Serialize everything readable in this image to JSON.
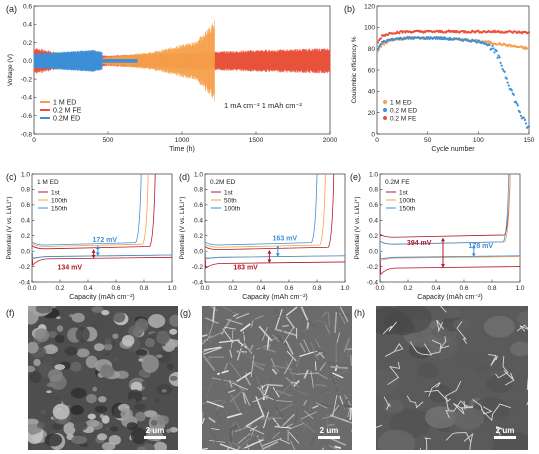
{
  "colors": {
    "orange": "#f5a04a",
    "red": "#e8513a",
    "blue": "#3f8fd6",
    "darkred": "#b2182b",
    "sem_dark": "#3a3a3a",
    "sem_light": "#cfcfcf"
  },
  "chart_data": [
    {
      "id": "a",
      "panel_label": "(a)",
      "type": "line",
      "xlabel": "Time (h)",
      "ylabel": "Voltage (V)",
      "xlim": [
        0,
        2000
      ],
      "ylim": [
        -0.8,
        0.6
      ],
      "xticks": [
        "0",
        "500",
        "1000",
        "1500",
        "2000"
      ],
      "yticks": [
        "-0.8",
        "-0.6",
        "-0.4",
        "-0.2",
        "0.0",
        "0.2",
        "0.4",
        "0.6"
      ],
      "annotation": "1 mA cm⁻²   1 mAh cm⁻²",
      "legend_position": "bottom-left",
      "series": [
        {
          "name": "1 M  ED",
          "color": "#f5a04a",
          "t_end": 1220,
          "amp": [
            [
              0,
              0.05
            ],
            [
              400,
              0.03
            ],
            [
              800,
              0.1
            ],
            [
              1100,
              0.22
            ],
            [
              1220,
              0.45
            ]
          ]
        },
        {
          "name": "0.2 M FE",
          "color": "#e8513a",
          "t_end": 2000,
          "amp": [
            [
              0,
              0.15
            ],
            [
              200,
              0.08
            ],
            [
              500,
              0.06
            ],
            [
              1000,
              0.09
            ],
            [
              1500,
              0.12
            ],
            [
              2000,
              0.14
            ]
          ]
        },
        {
          "name": "0.2M ED",
          "color": "#3f8fd6",
          "t_end": 460,
          "amp": [
            [
              0,
              0.08
            ],
            [
              200,
              0.1
            ],
            [
              400,
              0.12
            ],
            [
              460,
              0.1
            ]
          ],
          "tail_end": 700,
          "tail_amp": 0.02
        }
      ]
    },
    {
      "id": "b",
      "panel_label": "(b)",
      "type": "scatter",
      "xlabel": "Cycle number",
      "ylabel": "Coulombic efficiency %",
      "xlim": [
        0,
        150
      ],
      "ylim": [
        0,
        120
      ],
      "xticks": [
        "0",
        "50",
        "100",
        "150"
      ],
      "yticks": [
        "0",
        "20",
        "40",
        "60",
        "80",
        "100",
        "120"
      ],
      "legend_position": "bottom-left",
      "series": [
        {
          "name": "1  M  ED",
          "color": "#f5a04a",
          "points": [
            [
              1,
              78
            ],
            [
              5,
              84
            ],
            [
              15,
              88
            ],
            [
              30,
              90
            ],
            [
              60,
              90
            ],
            [
              90,
              88
            ],
            [
              110,
              86
            ],
            [
              130,
              83
            ],
            [
              150,
              80
            ]
          ]
        },
        {
          "name": "0.2 M  ED",
          "color": "#3f8fd6",
          "points": [
            [
              1,
              80
            ],
            [
              5,
              86
            ],
            [
              15,
              89
            ],
            [
              30,
              90
            ],
            [
              60,
              90
            ],
            [
              90,
              88
            ],
            [
              105,
              86
            ],
            [
              112,
              82
            ],
            [
              118,
              75
            ],
            [
              123,
              65
            ],
            [
              127,
              55
            ],
            [
              131,
              45
            ],
            [
              135,
              35
            ],
            [
              139,
              25
            ],
            [
              143,
              16
            ],
            [
              147,
              9
            ],
            [
              150,
              5
            ]
          ]
        },
        {
          "name": "0.2 M  FE",
          "color": "#e8513a",
          "points": [
            [
              1,
              86
            ],
            [
              5,
              92
            ],
            [
              15,
              95
            ],
            [
              30,
              96
            ],
            [
              60,
              96
            ],
            [
              90,
              96
            ],
            [
              120,
              96
            ],
            [
              150,
              95
            ]
          ]
        }
      ]
    },
    {
      "id": "c",
      "panel_label": "(c)",
      "type": "line",
      "title": "1 M ED",
      "xlabel": "Capacity (mAh cm⁻²)",
      "ylabel": "Potential (V vs. Li/Li⁺)",
      "xlim": [
        0,
        1.0
      ],
      "ylim": [
        -0.4,
        1.0
      ],
      "xticks": [
        "0.0",
        "0.2",
        "0.4",
        "0.6",
        "0.8",
        "1.0"
      ],
      "yticks": [
        "-0.4",
        "-0.2",
        "0.0",
        "0.2",
        "0.4",
        "0.6",
        "0.8",
        "1.0"
      ],
      "legend": [
        "1st",
        "100th",
        "150th"
      ],
      "series": [
        {
          "name": "1st",
          "color": "#b2182b",
          "charge_end": 0.88,
          "plateau_c": 0.03,
          "plateau_d": -0.1,
          "nuc": -0.18
        },
        {
          "name": "100th",
          "color": "#f5a04a",
          "charge_end": 0.83,
          "plateau_c": 0.06,
          "plateau_d": -0.07,
          "nuc": -0.1
        },
        {
          "name": "150th",
          "color": "#3f8fd6",
          "charge_end": 0.78,
          "plateau_c": 0.08,
          "plateau_d": -0.07,
          "nuc": -0.09
        }
      ],
      "annotations": [
        {
          "text": "172 mV",
          "color": "#3f8fd6",
          "x": 0.52,
          "y": 0.12
        },
        {
          "text": "134 mV",
          "color": "#b2182b",
          "x": 0.27,
          "y": -0.24
        }
      ]
    },
    {
      "id": "d",
      "panel_label": "(d)",
      "type": "line",
      "title": "0.2M ED",
      "xlabel": "Capacity (mAh cm⁻²)",
      "ylabel": "Potential (V vs. Li/Li⁺)",
      "xlim": [
        0,
        1.0
      ],
      "ylim": [
        -0.4,
        1.0
      ],
      "xticks": [
        "0.0",
        "0.2",
        "0.4",
        "0.6",
        "0.8",
        "1.0"
      ],
      "yticks": [
        "-0.4",
        "-0.2",
        "0.0",
        "0.2",
        "0.4",
        "0.6",
        "0.8",
        "1.0"
      ],
      "legend": [
        "1st",
        "50th",
        "100th"
      ],
      "series": [
        {
          "name": "1st",
          "color": "#b2182b",
          "charge_end": 0.92,
          "plateau_c": 0.02,
          "plateau_d": -0.16,
          "nuc": -0.22
        },
        {
          "name": "50th",
          "color": "#f5a04a",
          "charge_end": 0.86,
          "plateau_c": 0.05,
          "plateau_d": -0.08,
          "nuc": -0.1
        },
        {
          "name": "100th",
          "color": "#3f8fd6",
          "charge_end": 0.8,
          "plateau_c": 0.08,
          "plateau_d": -0.08,
          "nuc": -0.09
        }
      ],
      "annotations": [
        {
          "text": "163 mV",
          "color": "#3f8fd6",
          "x": 0.57,
          "y": 0.14
        },
        {
          "text": "183 mV",
          "color": "#b2182b",
          "x": 0.29,
          "y": -0.24
        }
      ]
    },
    {
      "id": "e",
      "panel_label": "(e)",
      "type": "line",
      "title": "0.2M FE",
      "xlabel": "Capacity (mAh cm⁻²)",
      "ylabel": "Potential (V vs. Li/Li⁺)",
      "xlim": [
        0,
        1.0
      ],
      "ylim": [
        -0.4,
        1.0
      ],
      "xticks": [
        "0.0",
        "0.2",
        "0.4",
        "0.6",
        "0.8",
        "1.0"
      ],
      "yticks": [
        "-0.4",
        "-0.2",
        "0.0",
        "0.2",
        "0.4",
        "0.6",
        "0.8",
        "1.0"
      ],
      "legend": [
        "1st",
        "100th",
        "150th"
      ],
      "series": [
        {
          "name": "1st",
          "color": "#b2182b",
          "charge_end": 0.93,
          "plateau_c": 0.18,
          "plateau_d": -0.22,
          "nuc": -0.3
        },
        {
          "name": "100th",
          "color": "#f5a04a",
          "charge_end": 0.93,
          "plateau_c": 0.09,
          "plateau_d": -0.09,
          "nuc": -0.12
        },
        {
          "name": "150th",
          "color": "#3f8fd6",
          "charge_end": 0.92,
          "plateau_c": 0.09,
          "plateau_d": -0.08,
          "nuc": -0.1
        }
      ],
      "annotations": [
        {
          "text": "394 mV",
          "color": "#b2182b",
          "x": 0.28,
          "y": 0.08
        },
        {
          "text": "178 mV",
          "color": "#3f8fd6",
          "x": 0.72,
          "y": 0.04
        }
      ]
    }
  ],
  "sem_images": [
    {
      "id": "f",
      "label": "(f)",
      "scalebar": "2 um",
      "style": "porous"
    },
    {
      "id": "g",
      "label": "(g)",
      "scalebar": "2 um",
      "style": "fibrous"
    },
    {
      "id": "h",
      "label": "(h)",
      "scalebar": "2 um",
      "style": "dense"
    }
  ]
}
